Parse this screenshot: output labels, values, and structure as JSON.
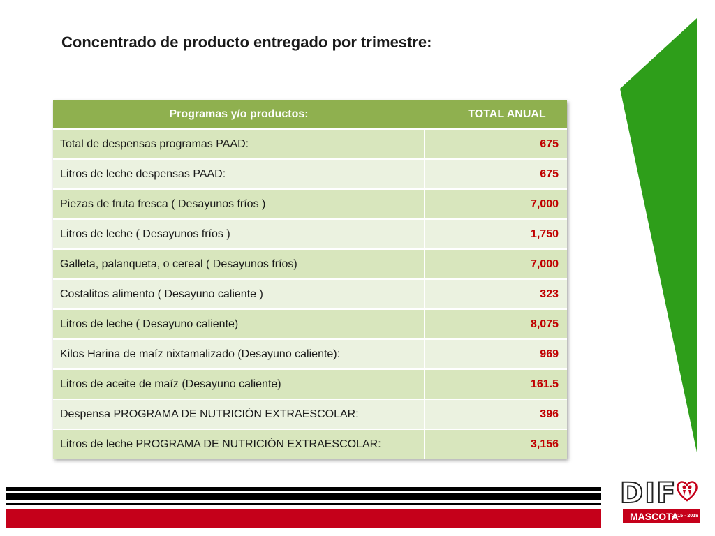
{
  "title": "Concentrado de producto entregado por trimestre:",
  "table": {
    "headers": [
      "Programas y/o productos:",
      "TOTAL  ANUAL"
    ],
    "rows": [
      {
        "label": "Total de despensas programas PAAD:",
        "value": "675"
      },
      {
        "label": "Litros de leche despensas PAAD:",
        "value": "675"
      },
      {
        "label": "Piezas de fruta fresca ( Desayunos fríos )",
        "value": "7,000"
      },
      {
        "label": "Litros de leche ( Desayunos fríos )",
        "value": "1,750"
      },
      {
        "label": "Galleta, palanqueta, o cereal ( Desayunos fríos)",
        "value": "7,000"
      },
      {
        "label": "Costalitos alimento ( Desayuno caliente )",
        "value": "323"
      },
      {
        "label": "Litros de leche ( Desayuno caliente)",
        "value": "8,075"
      },
      {
        "label": "Kilos Harina de maíz nixtamalizado (Desayuno caliente):",
        "value": "969"
      },
      {
        "label": "Litros de aceite de maíz (Desayuno caliente)",
        "value": "161.5"
      },
      {
        "label": "Despensa PROGRAMA DE NUTRICIÓN EXTRAESCOLAR:",
        "value": "396"
      },
      {
        "label": "Litros de leche PROGRAMA DE NUTRICIÓN EXTRAESCOLAR:",
        "value": "3,156"
      }
    ]
  },
  "logo": {
    "name": "DIF",
    "place": "MASCOTA",
    "years": "2015 - 2018"
  },
  "colors": {
    "header_green": "#8fb04f",
    "row_odd": "#d8e6bd",
    "row_even": "#ebf2e0",
    "value_red": "#c00000",
    "accent_green": "#2e9e1a",
    "band_red": "#c5001a"
  }
}
